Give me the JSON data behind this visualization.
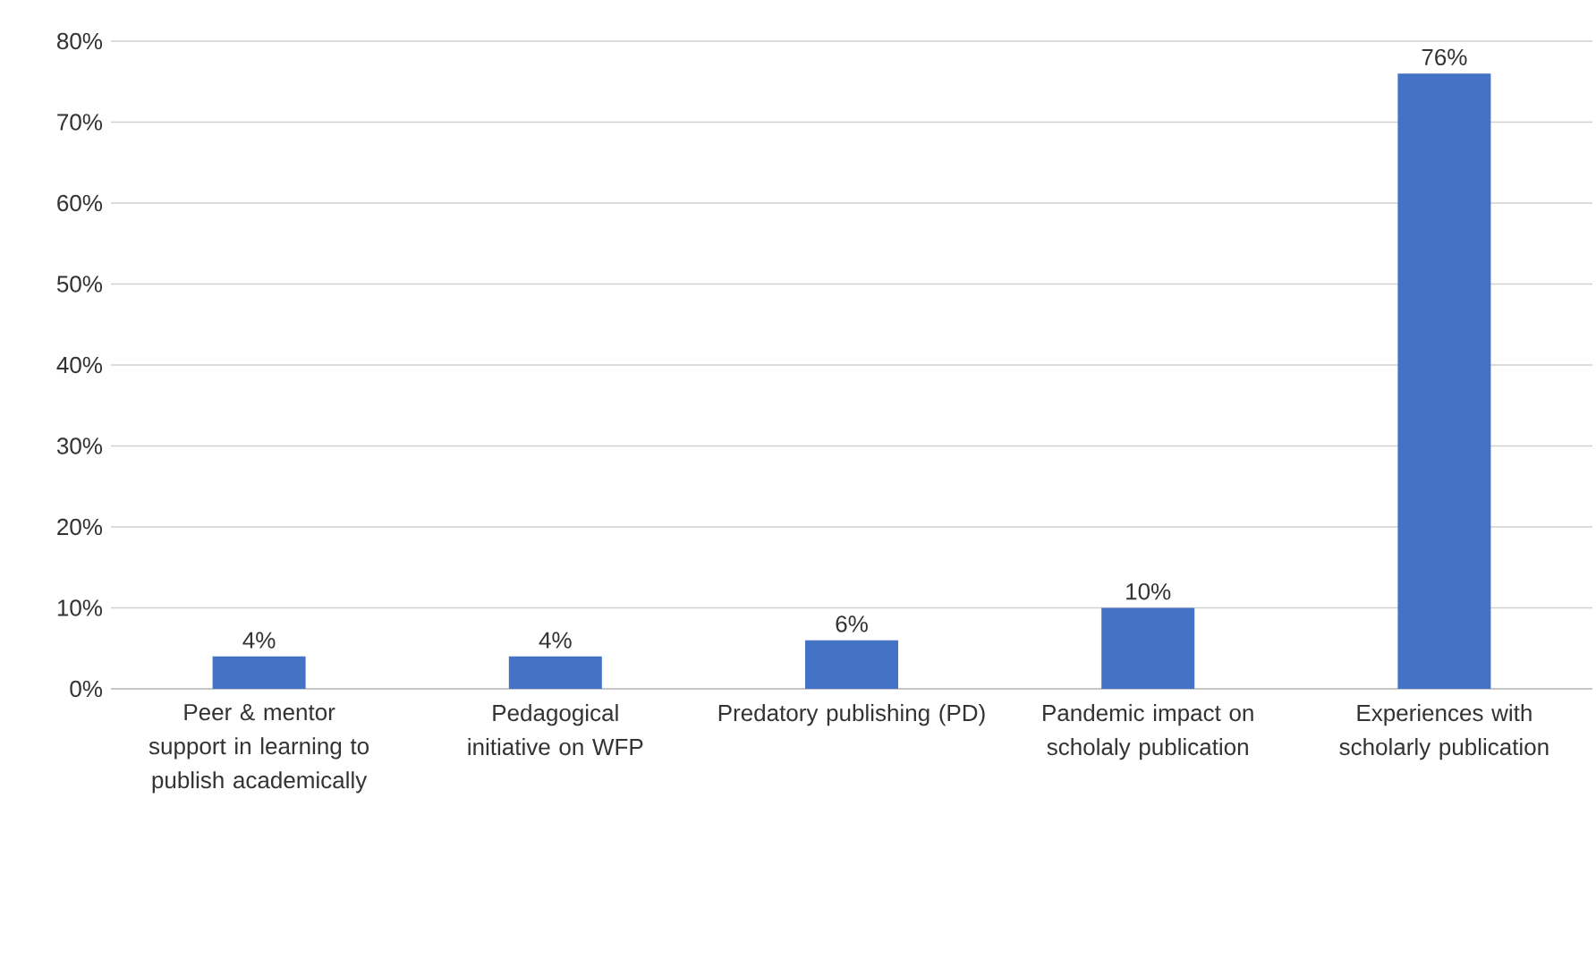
{
  "chart_data": {
    "type": "bar",
    "categories": [
      "Peer & mentor support in learning to publish academically",
      "Pedagogical initiative on WFP",
      "Predatory publishing (PD)",
      "Pandemic impact on scholaly publication",
      "Experiences with scholarly publication"
    ],
    "values": [
      4,
      4,
      6,
      10,
      76
    ],
    "value_labels": [
      "4%",
      "4%",
      "6%",
      "10%",
      "76%"
    ],
    "color": "#4472c4",
    "ylim": [
      0,
      80
    ],
    "yticks": [
      {
        "value": 0,
        "label": "0%"
      },
      {
        "value": 10,
        "label": "10%"
      },
      {
        "value": 20,
        "label": "20%"
      },
      {
        "value": 30,
        "label": "30%"
      },
      {
        "value": 40,
        "label": "40%"
      },
      {
        "value": 50,
        "label": "50%"
      },
      {
        "value": 60,
        "label": "60%"
      },
      {
        "value": 70,
        "label": "70%"
      },
      {
        "value": 80,
        "label": "80%"
      }
    ],
    "grid": "y"
  }
}
